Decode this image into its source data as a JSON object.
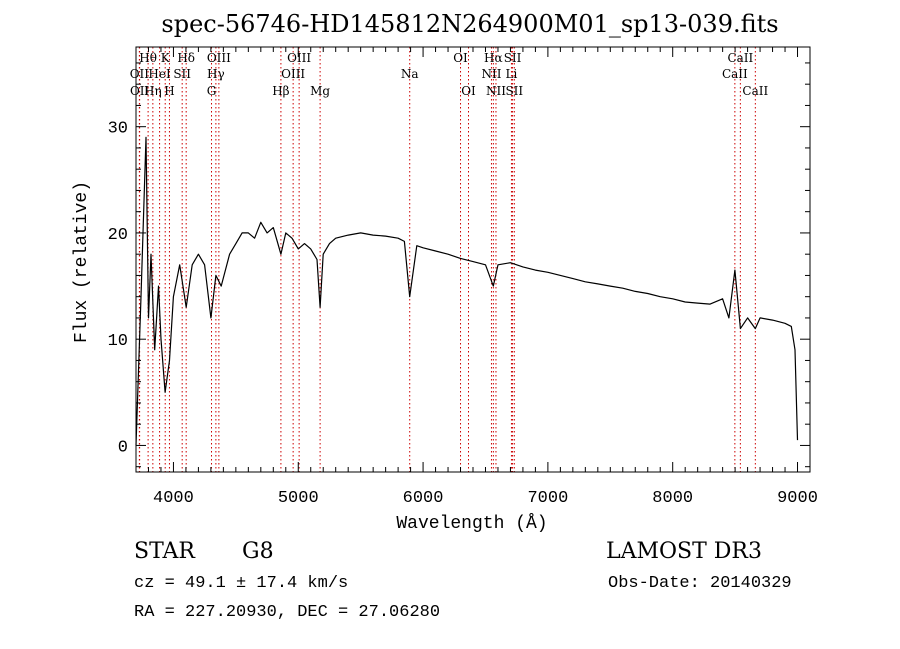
{
  "colors": {
    "foreground": "#000000",
    "line_marker": "#cc0000",
    "background": "#ffffff"
  },
  "chart_data": {
    "type": "line",
    "title": "spec-56746-HD145812N264900M01_sp13-039.fits",
    "xlabel": "Wavelength (Å)",
    "ylabel": "Flux (relative)",
    "xlim": [
      3700,
      9100
    ],
    "ylim": [
      -2.5,
      37.5
    ],
    "x_ticks": [
      4000,
      5000,
      6000,
      7000,
      8000,
      9000
    ],
    "x_tick_labels": [
      "4000",
      "5000",
      "6000",
      "7000",
      "8000",
      "9000"
    ],
    "y_ticks": [
      0,
      10,
      20,
      30
    ],
    "y_tick_labels": [
      "0",
      "10",
      "20",
      "30"
    ],
    "grid": false,
    "series": [
      {
        "name": "flux",
        "x": [
          3700,
          3740,
          3780,
          3800,
          3820,
          3850,
          3880,
          3900,
          3933,
          3968,
          4000,
          4050,
          4102,
          4150,
          4200,
          4250,
          4300,
          4340,
          4383,
          4450,
          4500,
          4550,
          4600,
          4650,
          4700,
          4750,
          4800,
          4861,
          4900,
          4950,
          5000,
          5050,
          5100,
          5150,
          5175,
          5200,
          5250,
          5300,
          5400,
          5500,
          5600,
          5700,
          5800,
          5850,
          5893,
          5950,
          6000,
          6100,
          6200,
          6300,
          6400,
          6500,
          6563,
          6600,
          6700,
          6800,
          6900,
          7000,
          7100,
          7200,
          7300,
          7400,
          7500,
          7600,
          7700,
          7800,
          7900,
          8000,
          8100,
          8200,
          8300,
          8400,
          8450,
          8498,
          8542,
          8600,
          8662,
          8700,
          8800,
          8900,
          8950,
          8980,
          9000
        ],
        "y": [
          0,
          14,
          29,
          12,
          18,
          9,
          15,
          10,
          5,
          8,
          14,
          17,
          13,
          17,
          18,
          17,
          12,
          16,
          15,
          18,
          19,
          20,
          20,
          19.5,
          21,
          20,
          20.5,
          18,
          20,
          19.5,
          18.5,
          19,
          18.5,
          17.5,
          13,
          18,
          19,
          19.5,
          19.8,
          20,
          19.8,
          19.7,
          19.5,
          19.2,
          14,
          18.8,
          18.6,
          18.3,
          18,
          17.6,
          17.3,
          17,
          15,
          17,
          17.2,
          16.8,
          16.5,
          16.3,
          16,
          15.7,
          15.4,
          15.2,
          15,
          14.8,
          14.5,
          14.3,
          14,
          13.8,
          13.5,
          13.4,
          13.3,
          13.8,
          12,
          16.5,
          11,
          12,
          11,
          12,
          11.8,
          11.5,
          11.2,
          9,
          0.5
        ]
      }
    ],
    "line_markers": [
      {
        "label": "Hθ",
        "wavelength": 3797,
        "row": 1
      },
      {
        "label": "OII",
        "wavelength": 3727,
        "row": 2
      },
      {
        "label": "OII",
        "wavelength": 3729,
        "row": 3
      },
      {
        "label": "HeI",
        "wavelength": 3889,
        "row": 2
      },
      {
        "label": "Hη",
        "wavelength": 3835,
        "row": 3
      },
      {
        "label": "K",
        "wavelength": 3934,
        "row": 1
      },
      {
        "label": "SII",
        "wavelength": 4070,
        "row": 2
      },
      {
        "label": "H",
        "wavelength": 3968,
        "row": 3
      },
      {
        "label": "Hδ",
        "wavelength": 4102,
        "row": 1
      },
      {
        "label": "OIII",
        "wavelength": 4364,
        "row": 1
      },
      {
        "label": "Hγ",
        "wavelength": 4340,
        "row": 2
      },
      {
        "label": "G",
        "wavelength": 4305,
        "row": 3
      },
      {
        "label": "Hβ",
        "wavelength": 4861,
        "row": 3
      },
      {
        "label": "OIII",
        "wavelength": 5007,
        "row": 1
      },
      {
        "label": "OIII",
        "wavelength": 4959,
        "row": 2
      },
      {
        "label": "Mg",
        "wavelength": 5175,
        "row": 3
      },
      {
        "label": "Na",
        "wavelength": 5893,
        "row": 2
      },
      {
        "label": "OI",
        "wavelength": 6300,
        "row": 1
      },
      {
        "label": "OI",
        "wavelength": 6364,
        "row": 3
      },
      {
        "label": "Hα",
        "wavelength": 6563,
        "row": 1
      },
      {
        "label": "NII",
        "wavelength": 6548,
        "row": 2
      },
      {
        "label": "NII",
        "wavelength": 6584,
        "row": 3
      },
      {
        "label": "SII",
        "wavelength": 6717,
        "row": 1
      },
      {
        "label": "Li",
        "wavelength": 6708,
        "row": 2
      },
      {
        "label": "SII",
        "wavelength": 6731,
        "row": 3
      },
      {
        "label": "CaII",
        "wavelength": 8542,
        "row": 1
      },
      {
        "label": "CaII",
        "wavelength": 8498,
        "row": 2
      },
      {
        "label": "CaII",
        "wavelength": 8662,
        "row": 3
      }
    ]
  },
  "info": {
    "object_class": "STAR",
    "subclass": "G8",
    "survey": "LAMOST DR3",
    "redshift_line": "cz = 49.1 ± 17.4 km/s",
    "obs_date_line": "Obs-Date: 20140329",
    "coords_line": "RA = 227.20930, DEC =  27.06280"
  }
}
